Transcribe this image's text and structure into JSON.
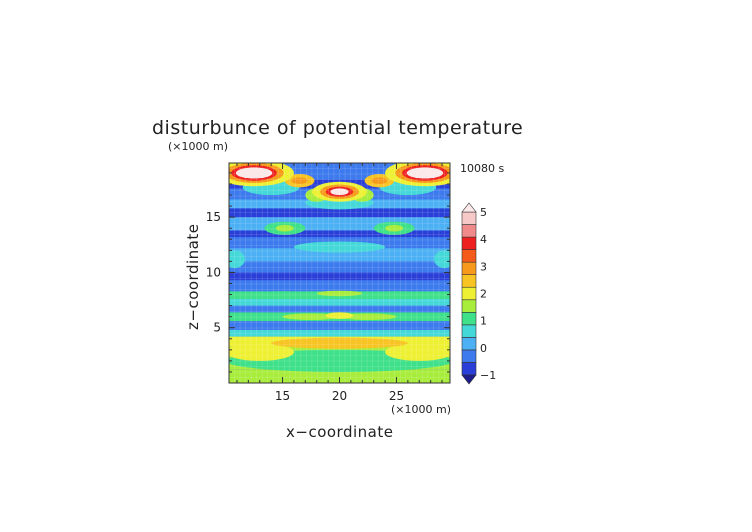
{
  "chart_data": {
    "type": "heatmap",
    "title": "disturbunce of potential temperature",
    "time_label": "10080 s",
    "xlabel": "x−coordinate",
    "ylabel": "z−coordinate",
    "x_unit": "(×1000 m)",
    "y_unit": "(×1000 m)",
    "xlim": [
      10.3,
      29.7
    ],
    "ylim": [
      0,
      19.9
    ],
    "x_ticks": [
      15,
      20,
      25
    ],
    "y_ticks": [
      5,
      10,
      15
    ],
    "grid": true,
    "colorbar": {
      "placement": "right",
      "levels": [
        -1,
        -0.5,
        0,
        0.5,
        1,
        1.5,
        2,
        2.5,
        3,
        3.5,
        4,
        4.5,
        5
      ],
      "tick_labels": [
        "5",
        "4",
        "3",
        "2",
        "1",
        "0",
        "−1"
      ],
      "tick_values": [
        5,
        4,
        3,
        2,
        1,
        0,
        -1
      ],
      "colors": [
        "#2a3fd8",
        "#3c7aee",
        "#4cb0f4",
        "#44d8d8",
        "#3fe08a",
        "#a8ec3c",
        "#eef033",
        "#f7c423",
        "#f79a1c",
        "#f45a19",
        "#ee2020",
        "#f08a8a",
        "#f7c8c8"
      ],
      "extend_colors": {
        "low": "#1c1c8a",
        "high": "#fbe8e8"
      }
    },
    "features": [
      {
        "x": 12.5,
        "z": 19.0,
        "value": 5.5
      },
      {
        "x": 20.0,
        "z": 17.3,
        "value": 5.2
      },
      {
        "x": 27.5,
        "z": 19.0,
        "value": 5.5
      },
      {
        "x": 15.0,
        "z": 14.0,
        "value": 1.3
      },
      {
        "x": 25.0,
        "z": 14.0,
        "value": 1.3
      },
      {
        "x": 20.0,
        "z": 6.2,
        "value": 1.6
      },
      {
        "x": 20.0,
        "z": 3.8,
        "value": 2.0
      }
    ]
  }
}
